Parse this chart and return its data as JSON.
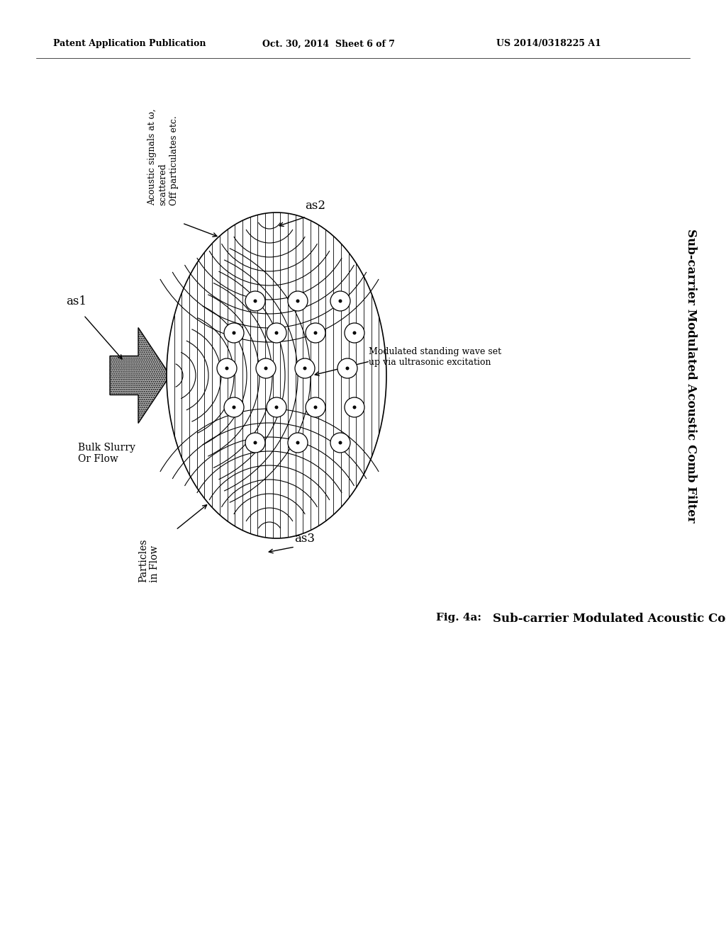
{
  "title_header_left": "Patent Application Publication",
  "title_header_mid": "Oct. 30, 2014  Sheet 6 of 7",
  "title_header_right": "US 2014/0318225 A1",
  "fig_label": "Fig. 4a:",
  "fig_title": "Sub-carrier Modulated Acoustic Comb Filter",
  "label_as1": "as1",
  "label_as2": "as2",
  "label_as3": "as3",
  "label_bulk": "Bulk Slurry\nOr Flow",
  "label_particles": "Particles\nin Flow",
  "label_acoustic": "Acoustic signals at ω,\nscattered\nOff particulates etc.",
  "label_modulated": "Modulated standing wave set\nup via ultrasonic excitation",
  "bg_color": "#ffffff"
}
